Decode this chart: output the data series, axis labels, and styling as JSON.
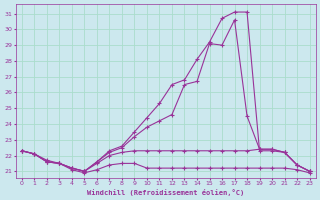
{
  "xlabel": "Windchill (Refroidissement éolien,°C)",
  "background_color": "#cce8ee",
  "line_color": "#993399",
  "grid_color": "#aaddcc",
  "xlim": [
    -0.5,
    23.5
  ],
  "ylim": [
    20.6,
    31.6
  ],
  "yticks": [
    21,
    22,
    23,
    24,
    25,
    26,
    27,
    28,
    29,
    30,
    31
  ],
  "xticks": [
    0,
    1,
    2,
    3,
    4,
    5,
    6,
    7,
    8,
    9,
    10,
    11,
    12,
    13,
    14,
    15,
    16,
    17,
    18,
    19,
    20,
    21,
    22,
    23
  ],
  "lines": [
    {
      "x": [
        0,
        1,
        2,
        3,
        4,
        5,
        6,
        7,
        8,
        9,
        10,
        11,
        12,
        13,
        14,
        15,
        16,
        17,
        18,
        19,
        20,
        21,
        22,
        23
      ],
      "y": [
        22.3,
        22.1,
        21.6,
        21.5,
        21.1,
        20.9,
        21.1,
        21.4,
        21.5,
        21.5,
        21.2,
        21.2,
        21.2,
        21.2,
        21.2,
        21.2,
        21.2,
        21.2,
        21.2,
        21.2,
        21.2,
        21.2,
        21.1,
        20.9
      ]
    },
    {
      "x": [
        0,
        1,
        2,
        3,
        4,
        5,
        6,
        7,
        8,
        9,
        10,
        11,
        12,
        13,
        14,
        15,
        16,
        17,
        18,
        19,
        20,
        21,
        22,
        23
      ],
      "y": [
        22.3,
        22.1,
        21.6,
        21.5,
        21.2,
        21.0,
        21.5,
        22.0,
        22.2,
        22.3,
        22.3,
        22.3,
        22.3,
        22.3,
        22.3,
        22.3,
        22.3,
        22.3,
        22.3,
        22.4,
        22.4,
        22.2,
        21.4,
        21.0
      ]
    },
    {
      "x": [
        0,
        1,
        2,
        3,
        4,
        5,
        6,
        7,
        8,
        9,
        10,
        11,
        12,
        13,
        14,
        15,
        16,
        17,
        18,
        19,
        20,
        21,
        22,
        23
      ],
      "y": [
        22.3,
        22.1,
        21.6,
        21.5,
        21.2,
        21.0,
        21.6,
        22.2,
        22.5,
        23.2,
        23.8,
        24.2,
        24.6,
        26.5,
        26.7,
        29.1,
        29.0,
        30.6,
        24.5,
        22.4,
        22.4,
        22.2,
        21.4,
        21.0
      ]
    },
    {
      "x": [
        0,
        1,
        2,
        3,
        4,
        5,
        6,
        7,
        8,
        9,
        10,
        11,
        12,
        13,
        14,
        15,
        16,
        17,
        18,
        19,
        20,
        21,
        22,
        23
      ],
      "y": [
        22.3,
        22.1,
        21.7,
        21.5,
        21.2,
        21.0,
        21.6,
        22.3,
        22.6,
        23.5,
        24.4,
        25.3,
        26.5,
        26.8,
        28.1,
        29.2,
        30.7,
        31.1,
        31.1,
        22.3,
        22.3,
        22.2,
        21.4,
        21.0
      ]
    }
  ]
}
